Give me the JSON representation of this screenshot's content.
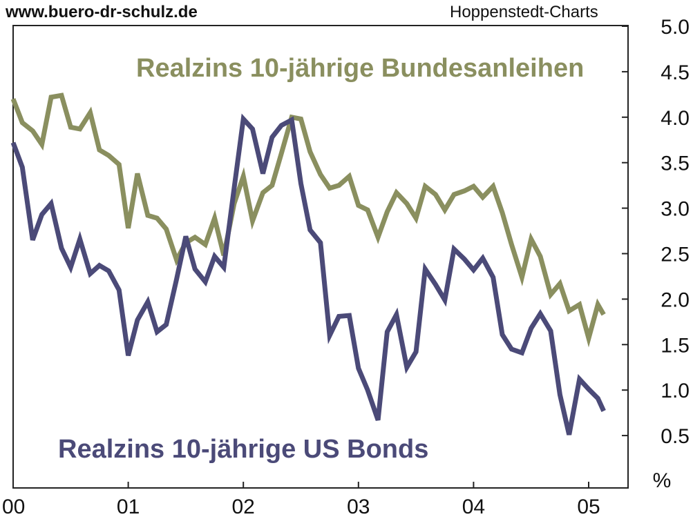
{
  "header": {
    "source_url": "www.buero-dr-schulz.de",
    "source_name": "Hoppenstedt-Charts"
  },
  "colors": {
    "de_series": "#8a8f5f",
    "us_series": "#4b4a78",
    "axis": "#222222",
    "background": "#ffffff"
  },
  "chart_data": {
    "type": "line",
    "title": "",
    "xlabel": "",
    "ylabel": "%",
    "xlim": [
      2000.0,
      2005.25
    ],
    "ylim": [
      0.0,
      5.0
    ],
    "x_ticks": [
      {
        "value": 2000,
        "label": "00"
      },
      {
        "value": 2001,
        "label": "01"
      },
      {
        "value": 2002,
        "label": "02"
      },
      {
        "value": 2003,
        "label": "03"
      },
      {
        "value": 2004,
        "label": "04"
      },
      {
        "value": 2005,
        "label": "05"
      }
    ],
    "y_ticks": [
      "0.5",
      "1.0",
      "1.5",
      "2.0",
      "2.5",
      "3.0",
      "3.5",
      "4.0",
      "4.5",
      "5.0"
    ],
    "y_axis_side": "right",
    "grid": false,
    "legend": "inline labels",
    "series": [
      {
        "name": "Realzins 10-jährige Bundesanleihen",
        "points": [
          [
            2000.0,
            4.2
          ],
          [
            2000.08,
            3.94
          ],
          [
            2000.17,
            3.85
          ],
          [
            2000.25,
            3.7
          ],
          [
            2000.33,
            4.22
          ],
          [
            2000.42,
            4.24
          ],
          [
            2000.5,
            3.89
          ],
          [
            2000.58,
            3.87
          ],
          [
            2000.67,
            4.05
          ],
          [
            2000.75,
            3.64
          ],
          [
            2000.83,
            3.58
          ],
          [
            2000.92,
            3.48
          ],
          [
            2001.0,
            2.78
          ],
          [
            2001.08,
            3.38
          ],
          [
            2001.17,
            2.92
          ],
          [
            2001.25,
            2.89
          ],
          [
            2001.33,
            2.77
          ],
          [
            2001.42,
            2.43
          ],
          [
            2001.5,
            2.62
          ],
          [
            2001.58,
            2.68
          ],
          [
            2001.67,
            2.6
          ],
          [
            2001.75,
            2.89
          ],
          [
            2001.83,
            2.48
          ],
          [
            2001.92,
            3.05
          ],
          [
            2002.0,
            3.35
          ],
          [
            2002.08,
            2.86
          ],
          [
            2002.17,
            3.17
          ],
          [
            2002.25,
            3.25
          ],
          [
            2002.33,
            3.6
          ],
          [
            2002.42,
            4.0
          ],
          [
            2002.5,
            3.98
          ],
          [
            2002.58,
            3.62
          ],
          [
            2002.67,
            3.37
          ],
          [
            2002.75,
            3.22
          ],
          [
            2002.83,
            3.25
          ],
          [
            2002.92,
            3.35
          ],
          [
            2003.0,
            3.03
          ],
          [
            2003.08,
            2.98
          ],
          [
            2003.17,
            2.68
          ],
          [
            2003.25,
            2.96
          ],
          [
            2003.33,
            3.17
          ],
          [
            2003.42,
            3.05
          ],
          [
            2003.5,
            2.89
          ],
          [
            2003.58,
            3.24
          ],
          [
            2003.67,
            3.15
          ],
          [
            2003.75,
            2.98
          ],
          [
            2003.83,
            3.15
          ],
          [
            2003.92,
            3.19
          ],
          [
            2004.0,
            3.24
          ],
          [
            2004.08,
            3.12
          ],
          [
            2004.17,
            3.24
          ],
          [
            2004.25,
            2.95
          ],
          [
            2004.33,
            2.6
          ],
          [
            2004.42,
            2.24
          ],
          [
            2004.5,
            2.66
          ],
          [
            2004.58,
            2.47
          ],
          [
            2004.67,
            2.05
          ],
          [
            2004.75,
            2.17
          ],
          [
            2004.83,
            1.87
          ],
          [
            2004.92,
            1.94
          ],
          [
            2005.0,
            1.57
          ],
          [
            2005.08,
            1.94
          ],
          [
            2005.13,
            1.83
          ]
        ]
      },
      {
        "name": "Realzins 10-jährige US Bonds",
        "points": [
          [
            2000.0,
            3.72
          ],
          [
            2000.08,
            3.45
          ],
          [
            2000.17,
            2.65
          ],
          [
            2000.25,
            2.93
          ],
          [
            2000.33,
            3.05
          ],
          [
            2000.42,
            2.56
          ],
          [
            2000.5,
            2.35
          ],
          [
            2000.58,
            2.66
          ],
          [
            2000.67,
            2.28
          ],
          [
            2000.75,
            2.37
          ],
          [
            2000.83,
            2.31
          ],
          [
            2000.92,
            2.1
          ],
          [
            2001.0,
            1.38
          ],
          [
            2001.08,
            1.77
          ],
          [
            2001.17,
            1.97
          ],
          [
            2001.25,
            1.64
          ],
          [
            2001.33,
            1.72
          ],
          [
            2001.42,
            2.22
          ],
          [
            2001.5,
            2.69
          ],
          [
            2001.58,
            2.33
          ],
          [
            2001.67,
            2.19
          ],
          [
            2001.75,
            2.47
          ],
          [
            2001.83,
            2.35
          ],
          [
            2001.92,
            3.22
          ],
          [
            2002.0,
            3.98
          ],
          [
            2002.08,
            3.87
          ],
          [
            2002.17,
            3.38
          ],
          [
            2002.25,
            3.78
          ],
          [
            2002.33,
            3.91
          ],
          [
            2002.42,
            3.97
          ],
          [
            2002.5,
            3.27
          ],
          [
            2002.58,
            2.76
          ],
          [
            2002.67,
            2.62
          ],
          [
            2002.75,
            1.6
          ],
          [
            2002.83,
            1.81
          ],
          [
            2002.92,
            1.82
          ],
          [
            2003.0,
            1.24
          ],
          [
            2003.08,
            1.0
          ],
          [
            2003.17,
            0.67
          ],
          [
            2003.25,
            1.64
          ],
          [
            2003.33,
            1.83
          ],
          [
            2003.42,
            1.25
          ],
          [
            2003.5,
            1.42
          ],
          [
            2003.58,
            2.33
          ],
          [
            2003.67,
            2.16
          ],
          [
            2003.75,
            1.99
          ],
          [
            2003.83,
            2.55
          ],
          [
            2003.92,
            2.44
          ],
          [
            2004.0,
            2.32
          ],
          [
            2004.08,
            2.45
          ],
          [
            2004.17,
            2.24
          ],
          [
            2004.25,
            1.61
          ],
          [
            2004.33,
            1.45
          ],
          [
            2004.42,
            1.41
          ],
          [
            2004.5,
            1.68
          ],
          [
            2004.58,
            1.84
          ],
          [
            2004.67,
            1.65
          ],
          [
            2004.75,
            0.95
          ],
          [
            2004.83,
            0.51
          ],
          [
            2004.92,
            1.12
          ],
          [
            2005.0,
            1.01
          ],
          [
            2005.08,
            0.91
          ],
          [
            2005.13,
            0.77
          ]
        ]
      }
    ]
  }
}
